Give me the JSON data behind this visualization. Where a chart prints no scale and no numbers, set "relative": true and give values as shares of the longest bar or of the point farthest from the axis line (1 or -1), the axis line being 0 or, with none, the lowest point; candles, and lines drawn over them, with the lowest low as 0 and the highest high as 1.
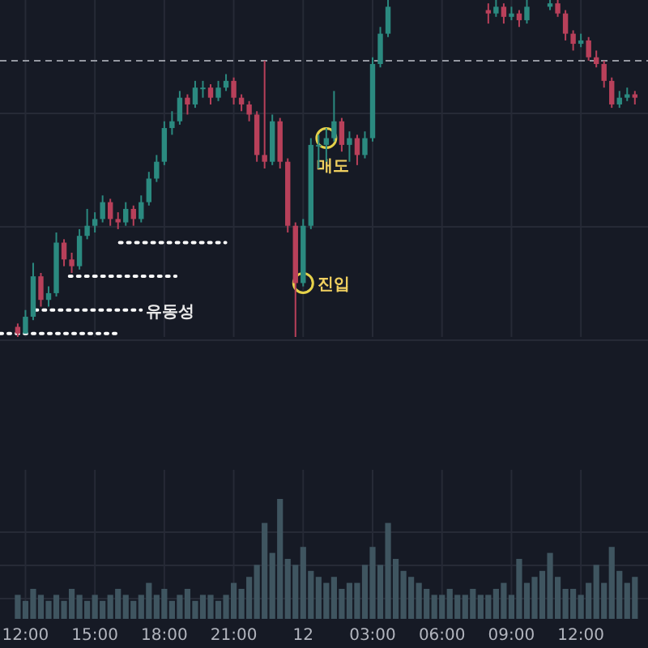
{
  "chart_data": [
    {
      "type": "candlestick",
      "relative": true,
      "grid": true,
      "tick_labels": false,
      "x": [
        "--01-11T11:40",
        "--01-11T12:00",
        "--01-11T12:20",
        "--01-11T12:40",
        "--01-11T13:00",
        "--01-11T13:20",
        "--01-11T13:40",
        "--01-11T14:00",
        "--01-11T14:20",
        "--01-11T14:40",
        "--01-11T15:00",
        "--01-11T15:20",
        "--01-11T15:40",
        "--01-11T16:00",
        "--01-11T16:20",
        "--01-11T16:40",
        "--01-11T17:00",
        "--01-11T17:20",
        "--01-11T17:40",
        "--01-11T18:00",
        "--01-11T18:20",
        "--01-11T18:40",
        "--01-11T19:00",
        "--01-11T19:20",
        "--01-11T19:40",
        "--01-11T20:00",
        "--01-11T20:20",
        "--01-11T20:40",
        "--01-11T21:00",
        "--01-11T21:20",
        "--01-11T21:40",
        "--01-11T22:00",
        "--01-11T22:20",
        "--01-11T22:40",
        "--01-11T23:00",
        "--01-11T23:20",
        "--01-11T23:40",
        "--01-12T00:00",
        "--01-12T00:20",
        "--01-12T00:40",
        "--01-12T01:00",
        "--01-12T01:20",
        "--01-12T01:40",
        "--01-12T02:00",
        "--01-12T02:20",
        "--01-12T02:40",
        "--01-12T03:00",
        "--01-12T03:20",
        "--01-12T03:40",
        "--01-12T08:00",
        "--01-12T08:20",
        "--01-12T08:40",
        "--01-12T09:00",
        "--01-12T09:20",
        "--01-12T09:40",
        "--01-12T10:40",
        "--01-12T11:00",
        "--01-12T11:20",
        "--01-12T11:40",
        "--01-12T12:00",
        "--01-12T12:20",
        "--01-12T12:40",
        "--01-12T13:00",
        "--01-12T13:20",
        "--01-12T13:40",
        "--01-12T14:00",
        "--01-12T14:20"
      ],
      "xlim": [
        "--01-11T10:54",
        "--01-12T14:54"
      ],
      "xticks": [
        "--01-11T12:00",
        "--01-11T15:00",
        "--01-11T18:00",
        "--01-11T21:00",
        "--01-12",
        "--01-12T03:00",
        "--01-12T06:00",
        "--01-12T09:00",
        "--01-12T12:00"
      ],
      "ref_lines": [
        {
          "axis": "y",
          "value": 0.82,
          "color": "#9598a1",
          "line_style": "dashed"
        }
      ],
      "annotations": [
        {
          "text": "유동성",
          "x": "--01-11T17:00",
          "y": 0.08
        },
        {
          "text": "진입",
          "x": "--01-12T00:00",
          "y": 0.16
        },
        {
          "text": "매도",
          "x": "--01-12T01:00",
          "y": 0.59
        }
      ],
      "series": [
        {
          "ohlc": [
            [
              0.03,
              0.04,
              0.0,
              0.01
            ],
            [
              0.01,
              0.08,
              0.01,
              0.06
            ],
            [
              0.06,
              0.22,
              0.05,
              0.18
            ],
            [
              0.18,
              0.19,
              0.09,
              0.11
            ],
            [
              0.11,
              0.15,
              0.09,
              0.13
            ],
            [
              0.13,
              0.31,
              0.12,
              0.28
            ],
            [
              0.28,
              0.29,
              0.21,
              0.23
            ],
            [
              0.23,
              0.25,
              0.19,
              0.21
            ],
            [
              0.21,
              0.32,
              0.2,
              0.3
            ],
            [
              0.3,
              0.38,
              0.29,
              0.33
            ],
            [
              0.33,
              0.37,
              0.31,
              0.35
            ],
            [
              0.35,
              0.42,
              0.34,
              0.4
            ],
            [
              0.4,
              0.41,
              0.33,
              0.35
            ],
            [
              0.35,
              0.37,
              0.32,
              0.34
            ],
            [
              0.34,
              0.4,
              0.33,
              0.38
            ],
            [
              0.38,
              0.39,
              0.33,
              0.35
            ],
            [
              0.35,
              0.42,
              0.34,
              0.4
            ],
            [
              0.4,
              0.49,
              0.39,
              0.47
            ],
            [
              0.47,
              0.54,
              0.46,
              0.52
            ],
            [
              0.52,
              0.64,
              0.51,
              0.62
            ],
            [
              0.62,
              0.67,
              0.6,
              0.64
            ],
            [
              0.64,
              0.73,
              0.63,
              0.71
            ],
            [
              0.71,
              0.72,
              0.66,
              0.69
            ],
            [
              0.69,
              0.76,
              0.68,
              0.74
            ],
            [
              0.74,
              0.76,
              0.71,
              0.74
            ],
            [
              0.74,
              0.75,
              0.69,
              0.71
            ],
            [
              0.71,
              0.76,
              0.7,
              0.74
            ],
            [
              0.74,
              0.78,
              0.73,
              0.76
            ],
            [
              0.76,
              0.77,
              0.69,
              0.71
            ],
            [
              0.71,
              0.72,
              0.67,
              0.69
            ],
            [
              0.69,
              0.7,
              0.64,
              0.66
            ],
            [
              0.66,
              0.67,
              0.52,
              0.54
            ],
            [
              0.54,
              0.82,
              0.5,
              0.52
            ],
            [
              0.52,
              0.66,
              0.51,
              0.64
            ],
            [
              0.64,
              0.65,
              0.5,
              0.52
            ],
            [
              0.52,
              0.53,
              0.31,
              0.33
            ],
            [
              0.33,
              0.34,
              0.0,
              0.16
            ],
            [
              0.16,
              0.35,
              0.15,
              0.33
            ],
            [
              0.33,
              0.59,
              0.32,
              0.57
            ],
            [
              0.57,
              0.6,
              0.5,
              0.57
            ],
            [
              0.57,
              0.62,
              0.52,
              0.59
            ],
            [
              0.59,
              0.73,
              0.58,
              0.64
            ],
            [
              0.64,
              0.65,
              0.55,
              0.57
            ],
            [
              0.57,
              0.61,
              0.52,
              0.59
            ],
            [
              0.59,
              0.6,
              0.51,
              0.54
            ],
            [
              0.54,
              0.61,
              0.53,
              0.59
            ],
            [
              0.59,
              0.83,
              0.58,
              0.81
            ],
            [
              0.81,
              0.92,
              0.8,
              0.9
            ],
            [
              0.9,
              1.0,
              0.89,
              0.98
            ],
            [
              0.97,
              0.99,
              0.93,
              0.96
            ],
            [
              0.96,
              1.0,
              0.95,
              0.98
            ],
            [
              0.98,
              0.99,
              0.93,
              0.95
            ],
            [
              0.95,
              0.98,
              0.94,
              0.96
            ],
            [
              0.96,
              0.97,
              0.92,
              0.94
            ],
            [
              0.94,
              1.0,
              0.93,
              0.98
            ],
            [
              0.98,
              1.0,
              0.97,
              0.99
            ],
            [
              0.99,
              1.0,
              0.95,
              0.96
            ],
            [
              0.96,
              0.97,
              0.88,
              0.9
            ],
            [
              0.9,
              0.91,
              0.85,
              0.87
            ],
            [
              0.87,
              0.9,
              0.86,
              0.88
            ],
            [
              0.88,
              0.89,
              0.82,
              0.83
            ],
            [
              0.83,
              0.85,
              0.8,
              0.81
            ],
            [
              0.81,
              0.82,
              0.74,
              0.76
            ],
            [
              0.76,
              0.77,
              0.68,
              0.69
            ],
            [
              0.69,
              0.73,
              0.68,
              0.71
            ],
            [
              0.71,
              0.74,
              0.7,
              0.72
            ],
            [
              0.72,
              0.73,
              0.69,
              0.71
            ]
          ],
          "colors": [
            "#b8405a",
            "#2b8a80",
            "#2b8a80",
            "#b8405a",
            "#2b8a80",
            "#2b8a80",
            "#b8405a",
            "#b8405a",
            "#2b8a80",
            "#2b8a80",
            "#2b8a80",
            "#2b8a80",
            "#b8405a",
            "#b8405a",
            "#2b8a80",
            "#b8405a",
            "#2b8a80",
            "#2b8a80",
            "#2b8a80",
            "#2b8a80",
            "#2b8a80",
            "#2b8a80",
            "#b8405a",
            "#2b8a80",
            "#2b8a80",
            "#b8405a",
            "#2b8a80",
            "#2b8a80",
            "#b8405a",
            "#b8405a",
            "#b8405a",
            "#b8405a",
            "#b8405a",
            "#2b8a80",
            "#b8405a",
            "#b8405a",
            "#b8405a",
            "#2b8a80",
            "#2b8a80",
            "#2b8a80",
            "#2b8a80",
            "#2b8a80",
            "#b8405a",
            "#2b8a80",
            "#b8405a",
            "#2b8a80",
            "#2b8a80",
            "#2b8a80",
            "#2b8a80",
            "#b8405a",
            "#2b8a80",
            "#b8405a",
            "#2b8a80",
            "#b8405a",
            "#2b8a80",
            "#2b8a80",
            "#b8405a",
            "#b8405a",
            "#b8405a",
            "#2b8a80",
            "#b8405a",
            "#b8405a",
            "#b8405a",
            "#b8405a",
            "#2b8a80",
            "#2b8a80",
            "#b8405a"
          ]
        },
        {
          "type": "line",
          "x": [
            "--01-11T10:54",
            "--01-11T16:08"
          ],
          "values": [
            0.01,
            0.01
          ],
          "color": "#ffffff",
          "line_style": "dotted",
          "marker": "none"
        },
        {
          "type": "line",
          "x": [
            "--01-11T12:25",
            "--01-11T17:00"
          ],
          "values": [
            0.08,
            0.08
          ],
          "color": "#ffffff",
          "line_style": "dotted",
          "marker": "none"
        },
        {
          "type": "line",
          "x": [
            "--01-11T13:54",
            "--01-11T18:30"
          ],
          "values": [
            0.18,
            0.18
          ],
          "color": "#ffffff",
          "line_style": "dotted",
          "marker": "none"
        },
        {
          "type": "line",
          "x": [
            "--01-11T16:04",
            "--01-11T20:39"
          ],
          "values": [
            0.28,
            0.28
          ],
          "color": "#ffffff",
          "line_style": "dotted",
          "marker": "none"
        }
      ]
    },
    {
      "type": "bar",
      "relative": true,
      "grid": true,
      "x": [
        "--01-11T11:40",
        "--01-11T12:00",
        "--01-11T12:20",
        "--01-11T12:40",
        "--01-11T13:00",
        "--01-11T13:20",
        "--01-11T13:40",
        "--01-11T14:00",
        "--01-11T14:20",
        "--01-11T14:40",
        "--01-11T15:00",
        "--01-11T15:20",
        "--01-11T15:40",
        "--01-11T16:00",
        "--01-11T16:20",
        "--01-11T16:40",
        "--01-11T17:00",
        "--01-11T17:20",
        "--01-11T17:40",
        "--01-11T18:00",
        "--01-11T18:20",
        "--01-11T18:40",
        "--01-11T19:00",
        "--01-11T19:20",
        "--01-11T19:40",
        "--01-11T20:00",
        "--01-11T20:20",
        "--01-11T20:40",
        "--01-11T21:00",
        "--01-11T21:20",
        "--01-11T21:40",
        "--01-11T22:00",
        "--01-11T22:20",
        "--01-11T22:40",
        "--01-11T23:00",
        "--01-11T23:20",
        "--01-11T23:40",
        "--01-12T00:00",
        "--01-12T00:20",
        "--01-12T00:40",
        "--01-12T01:00",
        "--01-12T01:20",
        "--01-12T01:40",
        "--01-12T02:00",
        "--01-12T02:20",
        "--01-12T02:40",
        "--01-12T03:00",
        "--01-12T03:20",
        "--01-12T03:40",
        "--01-12T04:00",
        "--01-12T04:20",
        "--01-12T04:40",
        "--01-12T05:00",
        "--01-12T05:20",
        "--01-12T05:40",
        "--01-12T06:00",
        "--01-12T06:20",
        "--01-12T06:40",
        "--01-12T07:00",
        "--01-12T07:20",
        "--01-12T07:40",
        "--01-12T08:00",
        "--01-12T08:20",
        "--01-12T08:40",
        "--01-12T09:00",
        "--01-12T09:20",
        "--01-12T09:40",
        "--01-12T10:00",
        "--01-12T10:20",
        "--01-12T10:40",
        "--01-12T11:00",
        "--01-12T11:20",
        "--01-12T11:40",
        "--01-12T12:00",
        "--01-12T12:20",
        "--01-12T12:40",
        "--01-12T13:00",
        "--01-12T13:20",
        "--01-12T13:40",
        "--01-12T14:00",
        "--01-12T14:20"
      ],
      "xlim": [
        "--01-11T10:54",
        "--01-12T14:54"
      ],
      "xticks": [
        {
          "value": "--01-11T12:00",
          "label": "12:00"
        },
        {
          "value": "--01-11T15:00",
          "label": "15:00"
        },
        {
          "value": "--01-11T18:00",
          "label": "18:00"
        },
        {
          "value": "--01-11T21:00",
          "label": "21:00"
        },
        {
          "value": "--01-12",
          "label": "12"
        },
        {
          "value": "--01-12T03:00",
          "label": "03:00"
        },
        {
          "value": "--01-12T06:00",
          "label": "06:00"
        },
        {
          "value": "--01-12T09:00",
          "label": "09:00"
        },
        {
          "value": "--01-12T12:00",
          "label": "12:00"
        }
      ],
      "series": [
        {
          "color": "#3f5560",
          "values": [
            0.2,
            0.15,
            0.25,
            0.2,
            0.15,
            0.2,
            0.15,
            0.25,
            0.2,
            0.15,
            0.2,
            0.15,
            0.2,
            0.25,
            0.2,
            0.15,
            0.2,
            0.3,
            0.2,
            0.25,
            0.15,
            0.2,
            0.25,
            0.15,
            0.2,
            0.2,
            0.15,
            0.2,
            0.3,
            0.25,
            0.35,
            0.45,
            0.8,
            0.55,
            1.0,
            0.5,
            0.45,
            0.6,
            0.4,
            0.35,
            0.3,
            0.35,
            0.25,
            0.3,
            0.3,
            0.45,
            0.6,
            0.45,
            0.8,
            0.5,
            0.4,
            0.35,
            0.3,
            0.25,
            0.2,
            0.2,
            0.25,
            0.2,
            0.2,
            0.25,
            0.2,
            0.2,
            0.25,
            0.3,
            0.2,
            0.5,
            0.3,
            0.35,
            0.4,
            0.55,
            0.35,
            0.25,
            0.25,
            0.2,
            0.3,
            0.45,
            0.3,
            0.6,
            0.4,
            0.3,
            0.35
          ]
        }
      ]
    }
  ]
}
